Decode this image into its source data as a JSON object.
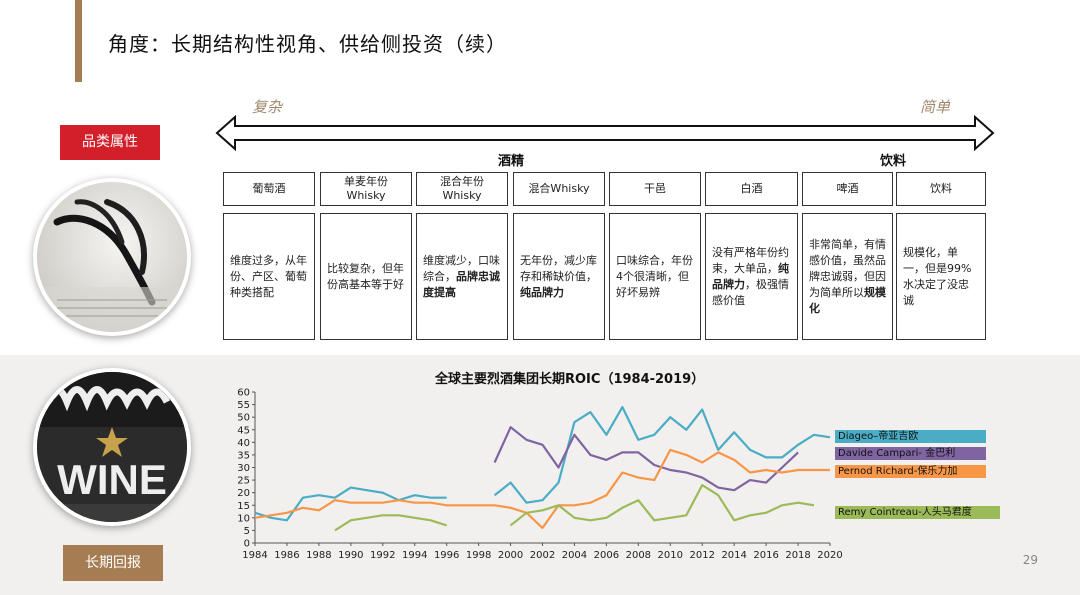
{
  "page": {
    "title": "角度：长期结构性视角、供给侧投资（续）",
    "page_number": "29",
    "badge_category": "品类属性",
    "badge_return": "长期回报"
  },
  "spectrum": {
    "left_label": "复杂",
    "right_label": "简单",
    "group_liquor": "酒精",
    "group_beverage": "饮料"
  },
  "categories": [
    {
      "name": "葡萄酒",
      "desc": "维度过多，从年份、产区、葡萄种类搭配",
      "bold": ""
    },
    {
      "name": "单麦年份\nWhisky",
      "desc": "比较复杂，但年份高基本等于好",
      "bold": ""
    },
    {
      "name": "混合年份\nWhisky",
      "desc": "维度减少，口味综合，",
      "bold": "品牌忠诚度提高"
    },
    {
      "name": "混合Whisky",
      "desc": "无年份，减少库存和稀缺价值，",
      "bold": "纯品牌力"
    },
    {
      "name": "干邑",
      "desc": "口味综合，年份4个很清晰，但好坏易辨",
      "bold": ""
    },
    {
      "name": "白酒",
      "desc": "没有严格年份约束，大单品，",
      "bold": "纯品牌力",
      "desc_after": "，极强情感价值"
    },
    {
      "name": "啤酒",
      "desc": "非常简单，有情感价值，虽然品牌忠诚弱，但因为简单所以",
      "bold": "规模化"
    },
    {
      "name": "饮料",
      "desc": "规模化，单一，但是99%水决定了没忠诚",
      "bold": ""
    }
  ],
  "chart_data": {
    "type": "line",
    "title": "全球主要烈酒集团长期ROIC（1984-2019）",
    "xlim": [
      1984,
      2020
    ],
    "ylim": [
      0,
      60
    ],
    "xticks": [
      1984,
      1986,
      1988,
      1990,
      1992,
      1994,
      1996,
      1998,
      2000,
      2002,
      2004,
      2006,
      2008,
      2010,
      2012,
      2014,
      2016,
      2018,
      2020
    ],
    "yticks": [
      0,
      5,
      10,
      15,
      20,
      25,
      30,
      35,
      40,
      45,
      50,
      55,
      60
    ],
    "series": [
      {
        "name": "Diageo–帝亚吉欧",
        "color": "#4bacc6",
        "points": [
          [
            1984,
            12
          ],
          [
            1985,
            10
          ],
          [
            1986,
            9
          ],
          [
            1987,
            18
          ],
          [
            1988,
            19
          ],
          [
            1989,
            18
          ],
          [
            1990,
            22
          ],
          [
            1991,
            21
          ],
          [
            1992,
            20
          ],
          [
            1993,
            17
          ],
          [
            1994,
            19
          ],
          [
            1995,
            18
          ],
          [
            1996,
            18
          ],
          null,
          [
            1999,
            19
          ],
          [
            2000,
            24
          ],
          [
            2001,
            16
          ],
          [
            2002,
            17
          ],
          [
            2003,
            24
          ],
          [
            2004,
            48
          ],
          [
            2005,
            52
          ],
          [
            2006,
            43
          ],
          [
            2007,
            54
          ],
          [
            2008,
            41
          ],
          [
            2009,
            43
          ],
          [
            2010,
            50
          ],
          [
            2011,
            45
          ],
          [
            2012,
            53
          ],
          [
            2013,
            37
          ],
          [
            2014,
            44
          ],
          [
            2015,
            37
          ],
          [
            2016,
            34
          ],
          [
            2017,
            34
          ],
          [
            2018,
            39
          ],
          [
            2019,
            43
          ],
          [
            2020,
            42
          ]
        ]
      },
      {
        "name": "Davide Campari- 金巴利",
        "color": "#8064a2",
        "points": [
          [
            1999,
            32
          ],
          [
            2000,
            46
          ],
          [
            2001,
            41
          ],
          [
            2002,
            39
          ],
          [
            2003,
            30
          ],
          [
            2004,
            43
          ],
          [
            2005,
            35
          ],
          [
            2006,
            33
          ],
          [
            2007,
            36
          ],
          [
            2008,
            36
          ],
          [
            2009,
            31
          ],
          [
            2010,
            29
          ],
          [
            2011,
            28
          ],
          [
            2012,
            26
          ],
          [
            2013,
            22
          ],
          [
            2014,
            21
          ],
          [
            2015,
            25
          ],
          [
            2016,
            24
          ],
          [
            2017,
            30
          ],
          [
            2018,
            36
          ]
        ]
      },
      {
        "name": "Pernod Richard-保乐力加",
        "color": "#f79646",
        "points": [
          [
            1984,
            10
          ],
          [
            1985,
            11
          ],
          [
            1986,
            12
          ],
          [
            1987,
            14
          ],
          [
            1988,
            13
          ],
          [
            1989,
            17
          ],
          [
            1990,
            16
          ],
          [
            1991,
            16
          ],
          [
            1992,
            16
          ],
          [
            1993,
            17
          ],
          [
            1994,
            16
          ],
          [
            1995,
            16
          ],
          [
            1996,
            15
          ],
          [
            1997,
            15
          ],
          [
            1998,
            15
          ],
          [
            1999,
            15
          ],
          [
            2000,
            14
          ],
          [
            2001,
            12
          ],
          [
            2002,
            6
          ],
          [
            2003,
            15
          ],
          [
            2004,
            15
          ],
          [
            2005,
            16
          ],
          [
            2006,
            19
          ],
          [
            2007,
            28
          ],
          [
            2008,
            26
          ],
          [
            2009,
            25
          ],
          [
            2010,
            37
          ],
          [
            2011,
            35
          ],
          [
            2012,
            32
          ],
          [
            2013,
            36
          ],
          [
            2014,
            33
          ],
          [
            2015,
            28
          ],
          [
            2016,
            29
          ],
          [
            2017,
            28
          ],
          [
            2018,
            29
          ],
          [
            2019,
            29
          ],
          [
            2020,
            29
          ]
        ]
      },
      {
        "name": "Remy Cointreau-人头马君度",
        "color": "#9bbb59",
        "points": [
          [
            1989,
            5
          ],
          [
            1990,
            9
          ],
          [
            1991,
            10
          ],
          [
            1992,
            11
          ],
          [
            1993,
            11
          ],
          [
            1994,
            10
          ],
          [
            1995,
            9
          ],
          [
            1996,
            7
          ],
          null,
          [
            2000,
            7
          ],
          [
            2001,
            12
          ],
          [
            2002,
            13
          ],
          [
            2003,
            15
          ],
          [
            2004,
            10
          ],
          [
            2005,
            9
          ],
          [
            2006,
            10
          ],
          [
            2007,
            14
          ],
          [
            2008,
            17
          ],
          [
            2009,
            9
          ],
          [
            2010,
            10
          ],
          [
            2011,
            11
          ],
          [
            2012,
            23
          ],
          [
            2013,
            19
          ],
          [
            2014,
            9
          ],
          [
            2015,
            11
          ],
          [
            2016,
            12
          ],
          [
            2017,
            15
          ],
          [
            2018,
            16
          ],
          [
            2019,
            15
          ]
        ]
      }
    ],
    "legend_placement": "right",
    "grid": false
  }
}
